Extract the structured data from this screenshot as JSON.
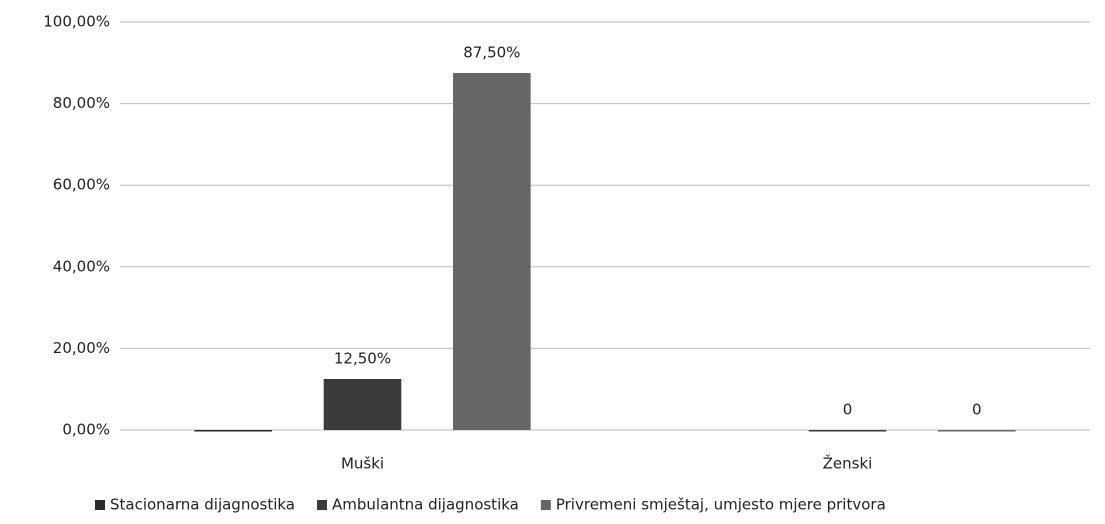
{
  "chart_data": {
    "type": "bar",
    "categories": [
      "Muški",
      "Ženski"
    ],
    "series": [
      {
        "name": "Stacionarna dijagnostika",
        "color": "#2b2b2b",
        "values": [
          0,
          null
        ],
        "value_labels": [
          null,
          null
        ]
      },
      {
        "name": "Ambulantna dijagnostika",
        "color": "#3a3a3a",
        "values": [
          12.5,
          0
        ],
        "value_labels": [
          "12,50%",
          "0"
        ]
      },
      {
        "name": "Privremeni smještaj, umjesto mjere pritvora",
        "color": "#666666",
        "values": [
          87.5,
          0
        ],
        "value_labels": [
          "87,50%",
          "0"
        ]
      }
    ],
    "ylim": [
      0,
      100
    ],
    "yticks": [
      {
        "value": 0,
        "label": "0,00%"
      },
      {
        "value": 20,
        "label": "20,00%"
      },
      {
        "value": 40,
        "label": "40,00%"
      },
      {
        "value": 60,
        "label": "60,00%"
      },
      {
        "value": 80,
        "label": "80,00%"
      },
      {
        "value": 100,
        "label": "100,00%"
      }
    ],
    "grid": true,
    "legend": "bottom"
  }
}
